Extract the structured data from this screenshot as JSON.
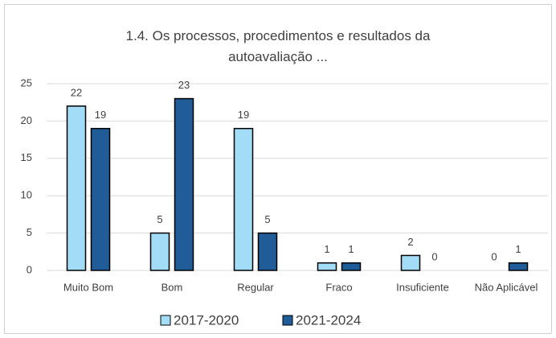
{
  "chart_data": {
    "type": "bar",
    "title": "1.4. Os processos, procedimentos e resultados da autoavaliação ...",
    "categories": [
      "Muito Bom",
      "Bom",
      "Regular",
      "Fraco",
      "Insuficiente",
      "Não Aplicável"
    ],
    "series": [
      {
        "name": "2017-2020",
        "color": "#a3dcf6",
        "values": [
          22,
          5,
          19,
          1,
          2,
          0
        ]
      },
      {
        "name": "2021-2024",
        "color": "#1f5c98",
        "values": [
          19,
          23,
          5,
          1,
          0,
          1
        ]
      }
    ],
    "ylim": [
      0,
      25
    ],
    "yticks": [
      0,
      5,
      10,
      15,
      20,
      25
    ],
    "grid": true,
    "legend": "bottom"
  }
}
